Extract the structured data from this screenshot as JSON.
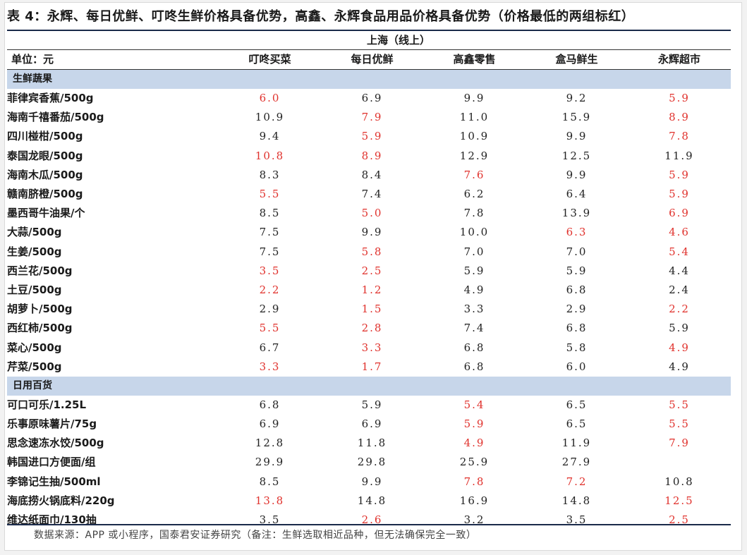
{
  "title": "表 4：永辉、每日优鲜、叮咚生鲜价格具备优势，高鑫、永辉食品用品价格具备优势（价格最低的两组标红）",
  "region": "上海（线上）",
  "header": {
    "unit": "单位：元",
    "columns": [
      "叮咚买菜",
      "每日优鲜",
      "高鑫零售",
      "盒马鲜生",
      "永辉超市"
    ]
  },
  "highlight_color": "#e0312c",
  "section_bg": "#c7d6ea",
  "sections": [
    {
      "label": "生鲜蔬果",
      "rows": [
        {
          "name": "菲律宾香蕉/500g",
          "values": [
            "6.0",
            "6.9",
            "9.9",
            "9.2",
            "5.9"
          ],
          "low": [
            true,
            false,
            false,
            false,
            true
          ]
        },
        {
          "name": "海南千禧番茄/500g",
          "values": [
            "10.9",
            "7.9",
            "11.0",
            "15.9",
            "8.9"
          ],
          "low": [
            false,
            true,
            false,
            false,
            true
          ]
        },
        {
          "name": "四川椪柑/500g",
          "values": [
            "9.4",
            "5.9",
            "10.9",
            "9.9",
            "7.8"
          ],
          "low": [
            false,
            true,
            false,
            false,
            true
          ]
        },
        {
          "name": "泰国龙眼/500g",
          "values": [
            "10.8",
            "8.9",
            "12.9",
            "12.5",
            "11.9"
          ],
          "low": [
            true,
            true,
            false,
            false,
            false
          ]
        },
        {
          "name": "海南木瓜/500g",
          "values": [
            "8.3",
            "8.4",
            "7.6",
            "9.9",
            "5.9"
          ],
          "low": [
            false,
            false,
            true,
            false,
            true
          ]
        },
        {
          "name": "赣南脐橙/500g",
          "values": [
            "5.5",
            "7.4",
            "6.2",
            "6.4",
            "5.9"
          ],
          "low": [
            true,
            false,
            false,
            false,
            true
          ]
        },
        {
          "name": "墨西哥牛油果/个",
          "values": [
            "8.5",
            "5.0",
            "7.8",
            "13.9",
            "6.9"
          ],
          "low": [
            false,
            true,
            false,
            false,
            true
          ]
        },
        {
          "name": "大蒜/500g",
          "values": [
            "7.5",
            "9.9",
            "10.0",
            "6.3",
            "4.6"
          ],
          "low": [
            false,
            false,
            false,
            true,
            true
          ]
        },
        {
          "name": "生姜/500g",
          "values": [
            "7.5",
            "5.8",
            "7.0",
            "7.0",
            "5.4"
          ],
          "low": [
            false,
            true,
            false,
            false,
            true
          ]
        },
        {
          "name": "西兰花/500g",
          "values": [
            "3.5",
            "2.5",
            "5.9",
            "5.9",
            "4.4"
          ],
          "low": [
            true,
            true,
            false,
            false,
            false
          ]
        },
        {
          "name": "土豆/500g",
          "values": [
            "2.2",
            "1.2",
            "4.9",
            "6.8",
            "2.4"
          ],
          "low": [
            true,
            true,
            false,
            false,
            false
          ]
        },
        {
          "name": "胡萝卜/500g",
          "values": [
            "2.9",
            "1.5",
            "3.3",
            "2.9",
            "2.2"
          ],
          "low": [
            false,
            true,
            false,
            false,
            true
          ]
        },
        {
          "name": "西红柿/500g",
          "values": [
            "5.5",
            "2.8",
            "7.4",
            "6.8",
            "5.9"
          ],
          "low": [
            true,
            true,
            false,
            false,
            false
          ]
        },
        {
          "name": "菜心/500g",
          "values": [
            "6.7",
            "3.3",
            "6.8",
            "5.8",
            "4.9"
          ],
          "low": [
            false,
            true,
            false,
            false,
            true
          ]
        },
        {
          "name": "芹菜/500g",
          "values": [
            "3.3",
            "1.7",
            "6.8",
            "6.0",
            "4.9"
          ],
          "low": [
            true,
            true,
            false,
            false,
            false
          ]
        }
      ]
    },
    {
      "label": "日用百货",
      "rows": [
        {
          "name": "可口可乐/1.25L",
          "values": [
            "6.8",
            "5.9",
            "5.4",
            "6.5",
            "5.5"
          ],
          "low": [
            false,
            false,
            true,
            false,
            true
          ]
        },
        {
          "name": "乐事原味薯片/75g",
          "values": [
            "6.9",
            "6.9",
            "5.9",
            "6.5",
            "5.5"
          ],
          "low": [
            false,
            false,
            true,
            false,
            true
          ]
        },
        {
          "name": "思念速冻水饺/500g",
          "values": [
            "12.8",
            "11.8",
            "4.9",
            "11.9",
            "7.9"
          ],
          "low": [
            false,
            false,
            true,
            false,
            true
          ]
        },
        {
          "name": "韩国进口方便面/组",
          "values": [
            "29.9",
            "29.8",
            "25.9",
            "27.9",
            ""
          ],
          "low": [
            false,
            false,
            false,
            false,
            false
          ]
        },
        {
          "name": "李锦记生抽/500ml",
          "values": [
            "8.5",
            "9.9",
            "7.8",
            "7.2",
            "10.8"
          ],
          "low": [
            false,
            false,
            true,
            true,
            false
          ]
        },
        {
          "name": "海底捞火锅底料/220g",
          "values": [
            "13.8",
            "14.8",
            "16.9",
            "14.8",
            "12.5"
          ],
          "low": [
            true,
            false,
            false,
            false,
            true
          ]
        },
        {
          "name": "维达纸面巾/130抽",
          "values": [
            "3.5",
            "2.6",
            "3.2",
            "3.5",
            "2.5"
          ],
          "low": [
            false,
            true,
            false,
            false,
            true
          ]
        }
      ]
    }
  ],
  "source_note": "数据来源：APP 或小程序，国泰君安证券研究（备注：生鲜选取相近品种，但无法确保完全一致）"
}
